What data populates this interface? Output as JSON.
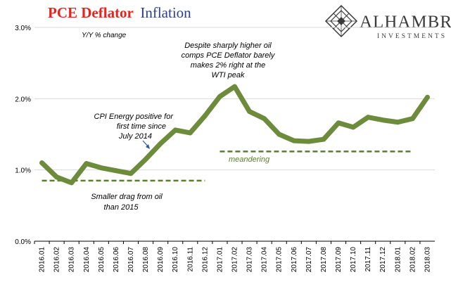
{
  "title": {
    "part1": "PCE Deflator",
    "part2": "Inflation"
  },
  "colors": {
    "title_red": "#e8231e",
    "title_blue": "#2b3f8c",
    "series": "#6d8c3b",
    "dashed": "#5b7d2e",
    "annotation_arrow": "#2b5aa0"
  },
  "logo": {
    "name": "ALHAMBRA",
    "sub": "INVESTMENTS",
    "icon": "diamond-lattice-icon"
  },
  "chart_data": {
    "type": "line",
    "title": "PCE Deflator Inflation",
    "ylabel": "Y/Y % change",
    "xlabel": "",
    "ylim": [
      0,
      3
    ],
    "yticks": [
      "0.0%",
      "1.0%",
      "2.0%",
      "3.0%"
    ],
    "ytick_values": [
      0,
      1,
      2,
      3
    ],
    "categories": [
      "2016.01",
      "2016.02",
      "2016.03",
      "2016.04",
      "2016.05",
      "2016.06",
      "2016.07",
      "2016.08",
      "2016.09",
      "2016.10",
      "2016.11",
      "2016.12",
      "2017.01",
      "2017.02",
      "2017.03",
      "2017.04",
      "2017.05",
      "2017.06",
      "2017.07",
      "2017.08",
      "2017.09",
      "2017.10",
      "2017.11",
      "2017.12",
      "2018.01",
      "2018.02",
      "2018.03"
    ],
    "series": [
      {
        "name": "PCE Deflator Y/Y",
        "values": [
          1.1,
          0.9,
          0.82,
          1.09,
          1.03,
          0.99,
          0.95,
          1.15,
          1.37,
          1.56,
          1.52,
          1.76,
          2.03,
          2.17,
          1.82,
          1.72,
          1.5,
          1.41,
          1.4,
          1.43,
          1.66,
          1.6,
          1.74,
          1.7,
          1.67,
          1.72,
          2.02
        ]
      }
    ],
    "reference_lines": [
      {
        "label": "Smaller drag from oil than 2015",
        "y": 0.85,
        "x_start": "2016.01",
        "x_end": "2016.12"
      },
      {
        "label": "meandering",
        "y": 1.26,
        "x_start": "2017.01",
        "x_end": "2018.02"
      }
    ],
    "annotations": {
      "yaxis_label": "Y/Y % change",
      "oil_drag_1": "Smaller drag from oil",
      "oil_drag_2": "than 2015",
      "cpi_1": "CPI Energy positive for",
      "cpi_2": "first time since",
      "cpi_3": "July 2014",
      "peak_1": "Despite sharply higher oil",
      "peak_2": "comps PCE Deflator barely",
      "peak_3": "makes 2% right at the",
      "peak_4": "WTI peak",
      "meandering": "meandering"
    }
  }
}
